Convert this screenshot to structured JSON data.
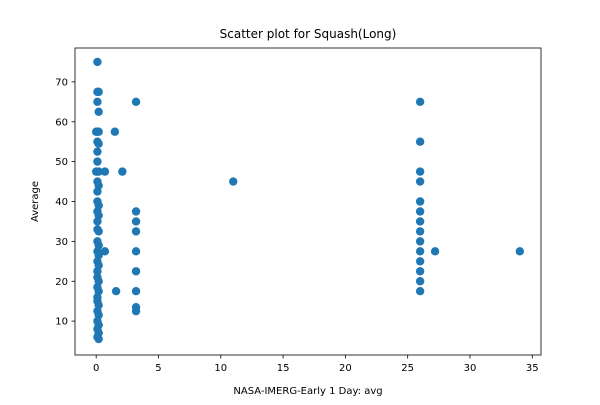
{
  "chart_data": {
    "type": "scatter",
    "title": "Scatter plot for Squash(Long)",
    "xlabel": "NASA-IMERG-Early 1 Day: avg",
    "ylabel": "Average",
    "xlim": [
      -1.7,
      35.7
    ],
    "ylim": [
      1.5,
      78.5
    ],
    "xticks": [
      0,
      5,
      10,
      15,
      20,
      25,
      30,
      35
    ],
    "yticks": [
      10,
      20,
      30,
      40,
      50,
      60,
      70
    ],
    "grid": false,
    "marker_color": "#1f77b4",
    "points": [
      {
        "x": 0.1,
        "y": 75
      },
      {
        "x": 0.1,
        "y": 67.5
      },
      {
        "x": 0.2,
        "y": 67.5
      },
      {
        "x": 0.1,
        "y": 65
      },
      {
        "x": 0.2,
        "y": 62.5
      },
      {
        "x": 0.1,
        "y": 57.5
      },
      {
        "x": 0.2,
        "y": 57.5
      },
      {
        "x": 0.0,
        "y": 57.5
      },
      {
        "x": 0.1,
        "y": 55
      },
      {
        "x": 0.2,
        "y": 54.5
      },
      {
        "x": 0.1,
        "y": 52.5
      },
      {
        "x": 0.1,
        "y": 50
      },
      {
        "x": 0.2,
        "y": 47.5
      },
      {
        "x": 0.1,
        "y": 47.5
      },
      {
        "x": 0.0,
        "y": 47.5
      },
      {
        "x": 0.1,
        "y": 45
      },
      {
        "x": 0.2,
        "y": 44
      },
      {
        "x": 0.1,
        "y": 42.5
      },
      {
        "x": 0.1,
        "y": 40
      },
      {
        "x": 0.2,
        "y": 39
      },
      {
        "x": 0.1,
        "y": 37.5
      },
      {
        "x": 0.2,
        "y": 36.5
      },
      {
        "x": 0.1,
        "y": 35
      },
      {
        "x": 0.1,
        "y": 33
      },
      {
        "x": 0.2,
        "y": 32.5
      },
      {
        "x": 0.1,
        "y": 30
      },
      {
        "x": 0.2,
        "y": 29
      },
      {
        "x": 0.1,
        "y": 27.5
      },
      {
        "x": 0.2,
        "y": 26.5
      },
      {
        "x": 0.1,
        "y": 25
      },
      {
        "x": 0.2,
        "y": 24
      },
      {
        "x": 0.1,
        "y": 22.5
      },
      {
        "x": 0.1,
        "y": 21
      },
      {
        "x": 0.2,
        "y": 20
      },
      {
        "x": 0.1,
        "y": 18.5
      },
      {
        "x": 0.2,
        "y": 17.5
      },
      {
        "x": 0.1,
        "y": 16
      },
      {
        "x": 0.1,
        "y": 15
      },
      {
        "x": 0.2,
        "y": 14
      },
      {
        "x": 0.1,
        "y": 12.5
      },
      {
        "x": 0.2,
        "y": 11.5
      },
      {
        "x": 0.1,
        "y": 10
      },
      {
        "x": 0.2,
        "y": 9
      },
      {
        "x": 0.1,
        "y": 8
      },
      {
        "x": 0.2,
        "y": 7
      },
      {
        "x": 0.1,
        "y": 6
      },
      {
        "x": 0.2,
        "y": 5.5
      },
      {
        "x": 1.5,
        "y": 57.5
      },
      {
        "x": 0.7,
        "y": 47.5
      },
      {
        "x": 2.1,
        "y": 47.5
      },
      {
        "x": 0.7,
        "y": 27.5
      },
      {
        "x": 1.6,
        "y": 17.5
      },
      {
        "x": 3.2,
        "y": 65
      },
      {
        "x": 3.2,
        "y": 37.5
      },
      {
        "x": 3.2,
        "y": 35
      },
      {
        "x": 3.2,
        "y": 32.5
      },
      {
        "x": 3.2,
        "y": 27.5
      },
      {
        "x": 3.2,
        "y": 22.5
      },
      {
        "x": 3.2,
        "y": 17.5
      },
      {
        "x": 3.2,
        "y": 13.5
      },
      {
        "x": 3.2,
        "y": 12.5
      },
      {
        "x": 11.0,
        "y": 45
      },
      {
        "x": 26.0,
        "y": 65
      },
      {
        "x": 26.0,
        "y": 55
      },
      {
        "x": 26.0,
        "y": 47.5
      },
      {
        "x": 26.0,
        "y": 45
      },
      {
        "x": 26.0,
        "y": 40
      },
      {
        "x": 26.0,
        "y": 37.5
      },
      {
        "x": 26.0,
        "y": 35
      },
      {
        "x": 26.0,
        "y": 32.5
      },
      {
        "x": 26.0,
        "y": 30
      },
      {
        "x": 26.0,
        "y": 27.5
      },
      {
        "x": 26.0,
        "y": 25
      },
      {
        "x": 26.0,
        "y": 22.5
      },
      {
        "x": 26.0,
        "y": 20
      },
      {
        "x": 26.0,
        "y": 17.5
      },
      {
        "x": 27.2,
        "y": 27.5
      },
      {
        "x": 34.0,
        "y": 27.5
      }
    ]
  }
}
